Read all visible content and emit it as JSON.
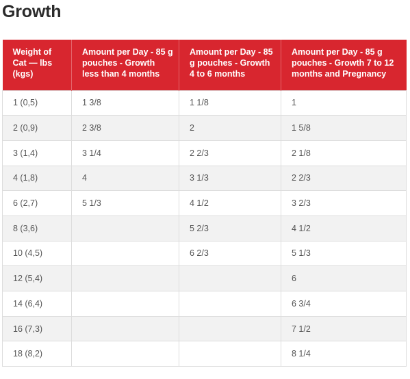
{
  "title": "Growth",
  "table": {
    "headers": [
      "Weight of Cat — lbs (kgs)",
      "Amount per Day - 85 g pouches - Growth less than 4 months",
      "Amount per Day - 85 g pouches - Growth 4 to 6 months",
      "Amount per Day - 85 g pouches - Growth 7 to 12 months and Pregnancy"
    ],
    "rows": [
      [
        "1 (0,5)",
        "1 3/8",
        "1 1/8",
        "1"
      ],
      [
        "2 (0,9)",
        "2 3/8",
        "2",
        "1 5/8"
      ],
      [
        "3 (1,4)",
        "3 1/4",
        "2 2/3",
        "2 1/8"
      ],
      [
        "4 (1,8)",
        "4",
        "3 1/3",
        "2 2/3"
      ],
      [
        "6 (2,7)",
        "5 1/3",
        "4 1/2",
        "3 2/3"
      ],
      [
        "8 (3,6)",
        "",
        "5 2/3",
        "4 1/2"
      ],
      [
        "10 (4,5)",
        "",
        "6 2/3",
        "5 1/3"
      ],
      [
        "12 (5,4)",
        "",
        "",
        "6"
      ],
      [
        "14 (6,4)",
        "",
        "",
        "6 3/4"
      ],
      [
        "16 (7,3)",
        "",
        "",
        "7 1/2"
      ],
      [
        "18 (8,2)",
        "",
        "",
        "8 1/4"
      ]
    ]
  },
  "colors": {
    "header_bg": "#d8262f",
    "header_text": "#ffffff",
    "stripe": "#f2f2f2"
  }
}
